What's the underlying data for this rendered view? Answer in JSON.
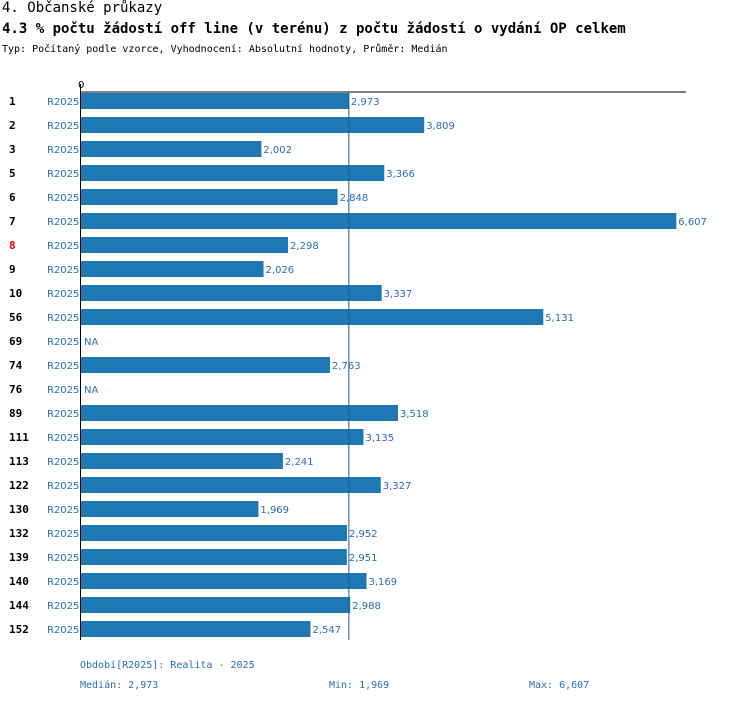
{
  "header": {
    "section": "4. Občanské průkazy",
    "title": "4.3 % počtu žádostí off line (v terénu) z počtu žádostí o vydání OP celkem",
    "subtitle": "Typ: Počítaný podle vzorce, Vyhodnocení: Absolutní hodnoty, Průměr: Medián"
  },
  "colors": {
    "bar": "#1f77b4",
    "label": "#2a6fb0",
    "highlight": "#e00000"
  },
  "chart_data": {
    "type": "bar",
    "orientation": "horizontal",
    "axis_min_label": "0",
    "xlim": [
      0,
      6.8
    ],
    "median_line": 2.973,
    "highlight_category": "8",
    "categories": [
      "1",
      "2",
      "3",
      "5",
      "6",
      "7",
      "8",
      "9",
      "10",
      "56",
      "69",
      "74",
      "76",
      "89",
      "111",
      "113",
      "122",
      "130",
      "132",
      "139",
      "140",
      "144",
      "152"
    ],
    "series": [
      {
        "name": "R2025",
        "values": [
          2.973,
          3.809,
          2.002,
          3.366,
          2.848,
          6.607,
          2.298,
          2.026,
          3.337,
          5.131,
          null,
          2.763,
          null,
          3.518,
          3.135,
          2.241,
          3.327,
          1.969,
          2.952,
          2.951,
          3.169,
          2.988,
          2.547
        ],
        "labels": [
          "2,973",
          "3,809",
          "2,002",
          "3,366",
          "2,848",
          "6,607",
          "2,298",
          "2,026",
          "3,337",
          "5,131",
          "NA",
          "2,763",
          "NA",
          "3,518",
          "3,135",
          "2,241",
          "3,327",
          "1,969",
          "2,952",
          "2,951",
          "3,169",
          "2,988",
          "2,547"
        ]
      }
    ]
  },
  "footer": {
    "period": "Období[R2025]: Realita - 2025",
    "median": "Medián: 2,973",
    "min": "Min: 1,969",
    "max": "Max: 6,607"
  }
}
